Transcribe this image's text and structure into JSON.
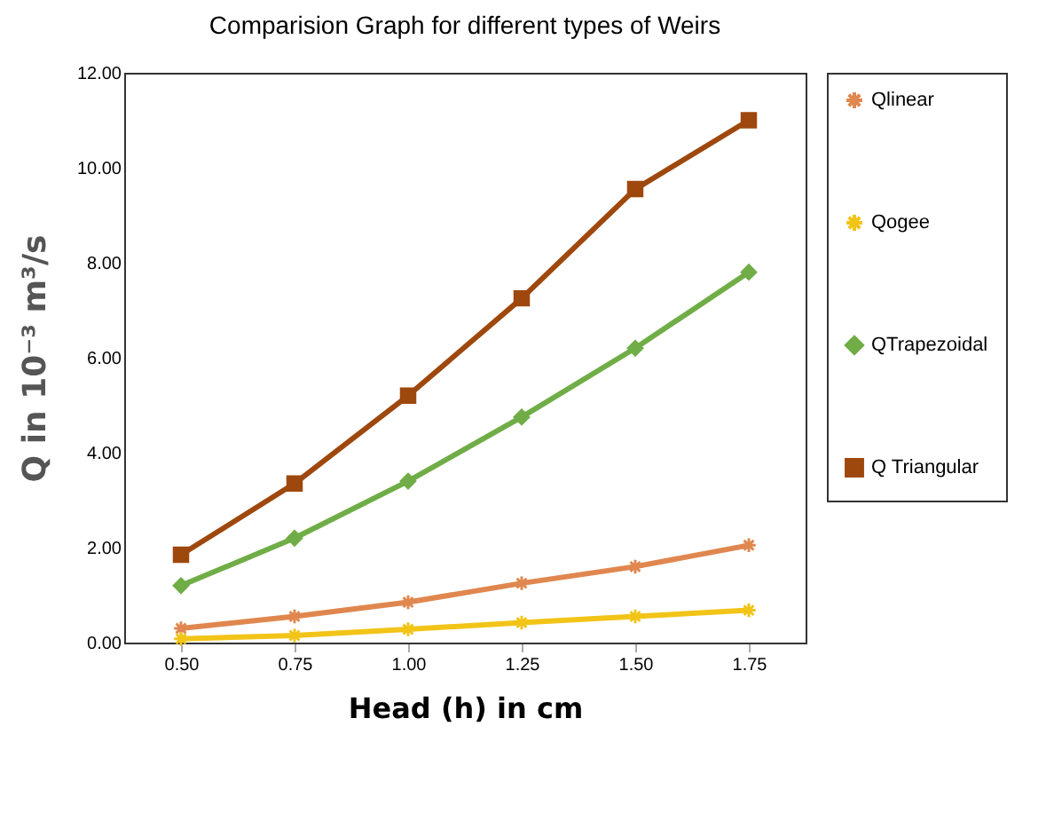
{
  "chart_data": {
    "type": "line",
    "title": "Comparision Graph for different types of Weirs",
    "xlabel": "Head (h)  in cm",
    "ylabel": "Q in 10⁻³ m³/s",
    "categories": [
      "0.50",
      "0.75",
      "1.00",
      "1.25",
      "1.50",
      "1.75"
    ],
    "series": [
      {
        "name": "Qlinear",
        "color": "#e0874f",
        "marker": "cross",
        "values": [
          0.3,
          0.55,
          0.85,
          1.25,
          1.6,
          2.05
        ]
      },
      {
        "name": "Qogee",
        "color": "#f2c418",
        "marker": "cross",
        "values": [
          0.08,
          0.15,
          0.28,
          0.42,
          0.55,
          0.68
        ]
      },
      {
        "name": "QTrapezoidal",
        "color": "#70ad47",
        "marker": "diamond",
        "values": [
          1.2,
          2.2,
          3.4,
          4.75,
          6.2,
          7.8
        ]
      },
      {
        "name": "Q Triangular",
        "color": "#9e480e",
        "marker": "square",
        "values": [
          1.85,
          3.35,
          5.2,
          7.25,
          9.55,
          11.0
        ]
      }
    ],
    "ylim": [
      0,
      12
    ],
    "yticks": [
      {
        "value": 0,
        "label": "0.00"
      },
      {
        "value": 2,
        "label": "2.00"
      },
      {
        "value": 4,
        "label": "4.00"
      },
      {
        "value": 6,
        "label": "6.00"
      },
      {
        "value": 8,
        "label": "8.00"
      },
      {
        "value": 10,
        "label": "10.00"
      },
      {
        "value": 12,
        "label": "12.00"
      }
    ],
    "grid": false,
    "legend": "right"
  }
}
